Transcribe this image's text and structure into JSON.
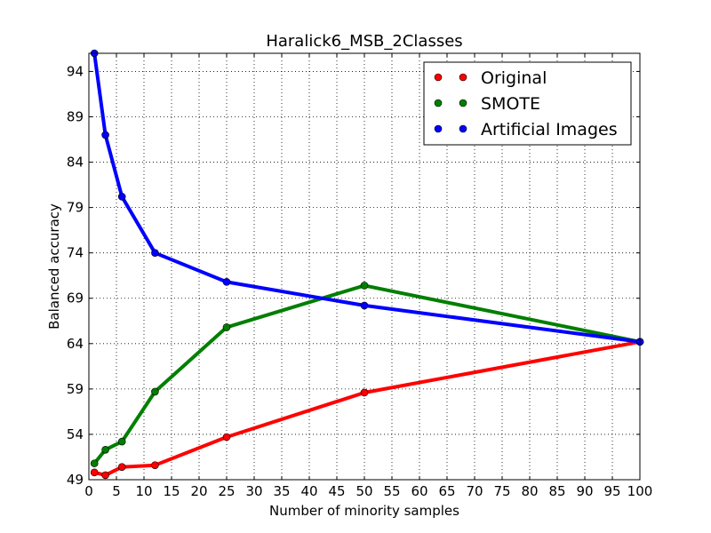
{
  "chart_data": {
    "type": "line",
    "title": "Haralick6_MSB_2Classes",
    "xlabel": "Number of minority samples",
    "ylabel": "Balanced accuracy",
    "xlim": [
      0,
      100
    ],
    "ylim": [
      49,
      96
    ],
    "xticks": [
      "0",
      "5",
      "10",
      "15",
      "20",
      "25",
      "30",
      "35",
      "40",
      "45",
      "50",
      "55",
      "60",
      "65",
      "70",
      "75",
      "80",
      "85",
      "90",
      "95",
      "100"
    ],
    "yticks": [
      "49",
      "54",
      "59",
      "64",
      "69",
      "74",
      "79",
      "84",
      "89",
      "94"
    ],
    "grid": true,
    "legend_position": "top-right",
    "series": [
      {
        "name": "Original",
        "color": "#ff0000",
        "x": [
          1,
          3,
          6,
          12,
          25,
          50,
          100
        ],
        "y": [
          49.8,
          49.5,
          50.4,
          50.6,
          53.7,
          58.6,
          64.2
        ]
      },
      {
        "name": "SMOTE",
        "color": "#007f00",
        "x": [
          1,
          3,
          6,
          12,
          25,
          50,
          100
        ],
        "y": [
          50.8,
          52.3,
          53.2,
          58.7,
          65.8,
          70.4,
          64.2
        ]
      },
      {
        "name": "Artificial Images",
        "color": "#0000ff",
        "x": [
          1,
          3,
          6,
          12,
          25,
          50,
          100
        ],
        "y": [
          96.0,
          87.0,
          80.2,
          74.0,
          70.8,
          68.2,
          64.2
        ]
      }
    ]
  }
}
